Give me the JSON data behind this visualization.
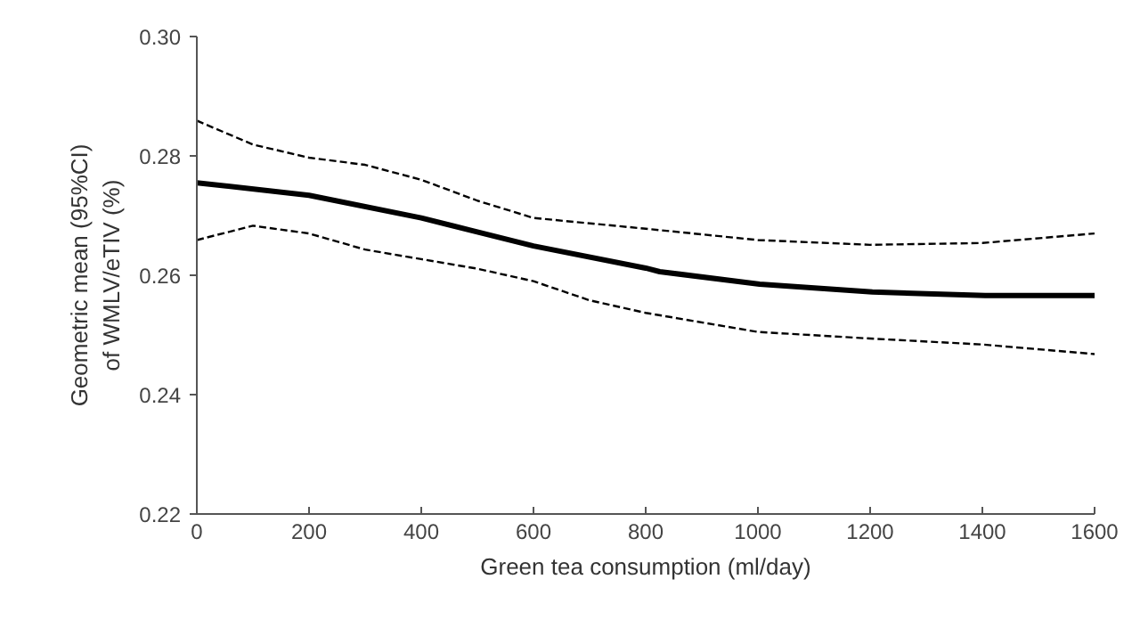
{
  "chart_data": {
    "type": "line",
    "xlabel": "Green tea consumption (ml/day)",
    "ylabel": "Geometric mean (95%CI)\nof WMLV/eTIV (%)",
    "xlim": [
      0,
      1600
    ],
    "xticks": [
      0,
      200,
      400,
      600,
      800,
      1000,
      1200,
      1400,
      1600
    ],
    "ylim": [
      0.22,
      0.3
    ],
    "yticks": [
      {
        "value": 0.22,
        "label": "0.22"
      },
      {
        "value": 0.24,
        "label": "0.24"
      },
      {
        "value": 0.26,
        "label": "0.26"
      },
      {
        "value": 0.28,
        "label": "0.28"
      },
      {
        "value": 0.3,
        "label": "0.30"
      }
    ],
    "grid": false,
    "marker": "none",
    "series": [
      {
        "color": "#000000",
        "line_style": "solid",
        "x": [
          0,
          200,
          400,
          600,
          800,
          825,
          1003,
          1204,
          1405,
          1600
        ],
        "values": [
          0.2755,
          0.2734,
          0.2696,
          0.2649,
          0.2612,
          0.2606,
          0.2585,
          0.2572,
          0.2566,
          0.2566
        ]
      },
      {
        "color": "#000000",
        "line_style": "dashed",
        "x": [
          0,
          100,
          200,
          300,
          400,
          500,
          600,
          800,
          1000,
          1200,
          1400,
          1600
        ],
        "values": [
          0.2859,
          0.2819,
          0.2797,
          0.2785,
          0.276,
          0.2725,
          0.2696,
          0.2678,
          0.2659,
          0.2651,
          0.2654,
          0.267
        ]
      },
      {
        "color": "#000000",
        "line_style": "dashed",
        "x": [
          0,
          100,
          200,
          300,
          400,
          500,
          600,
          700,
          800,
          1000,
          1200,
          1400,
          1600
        ],
        "values": [
          0.2659,
          0.2683,
          0.267,
          0.2643,
          0.2627,
          0.2611,
          0.259,
          0.2558,
          0.2537,
          0.2505,
          0.2494,
          0.2484,
          0.2468
        ]
      }
    ]
  }
}
